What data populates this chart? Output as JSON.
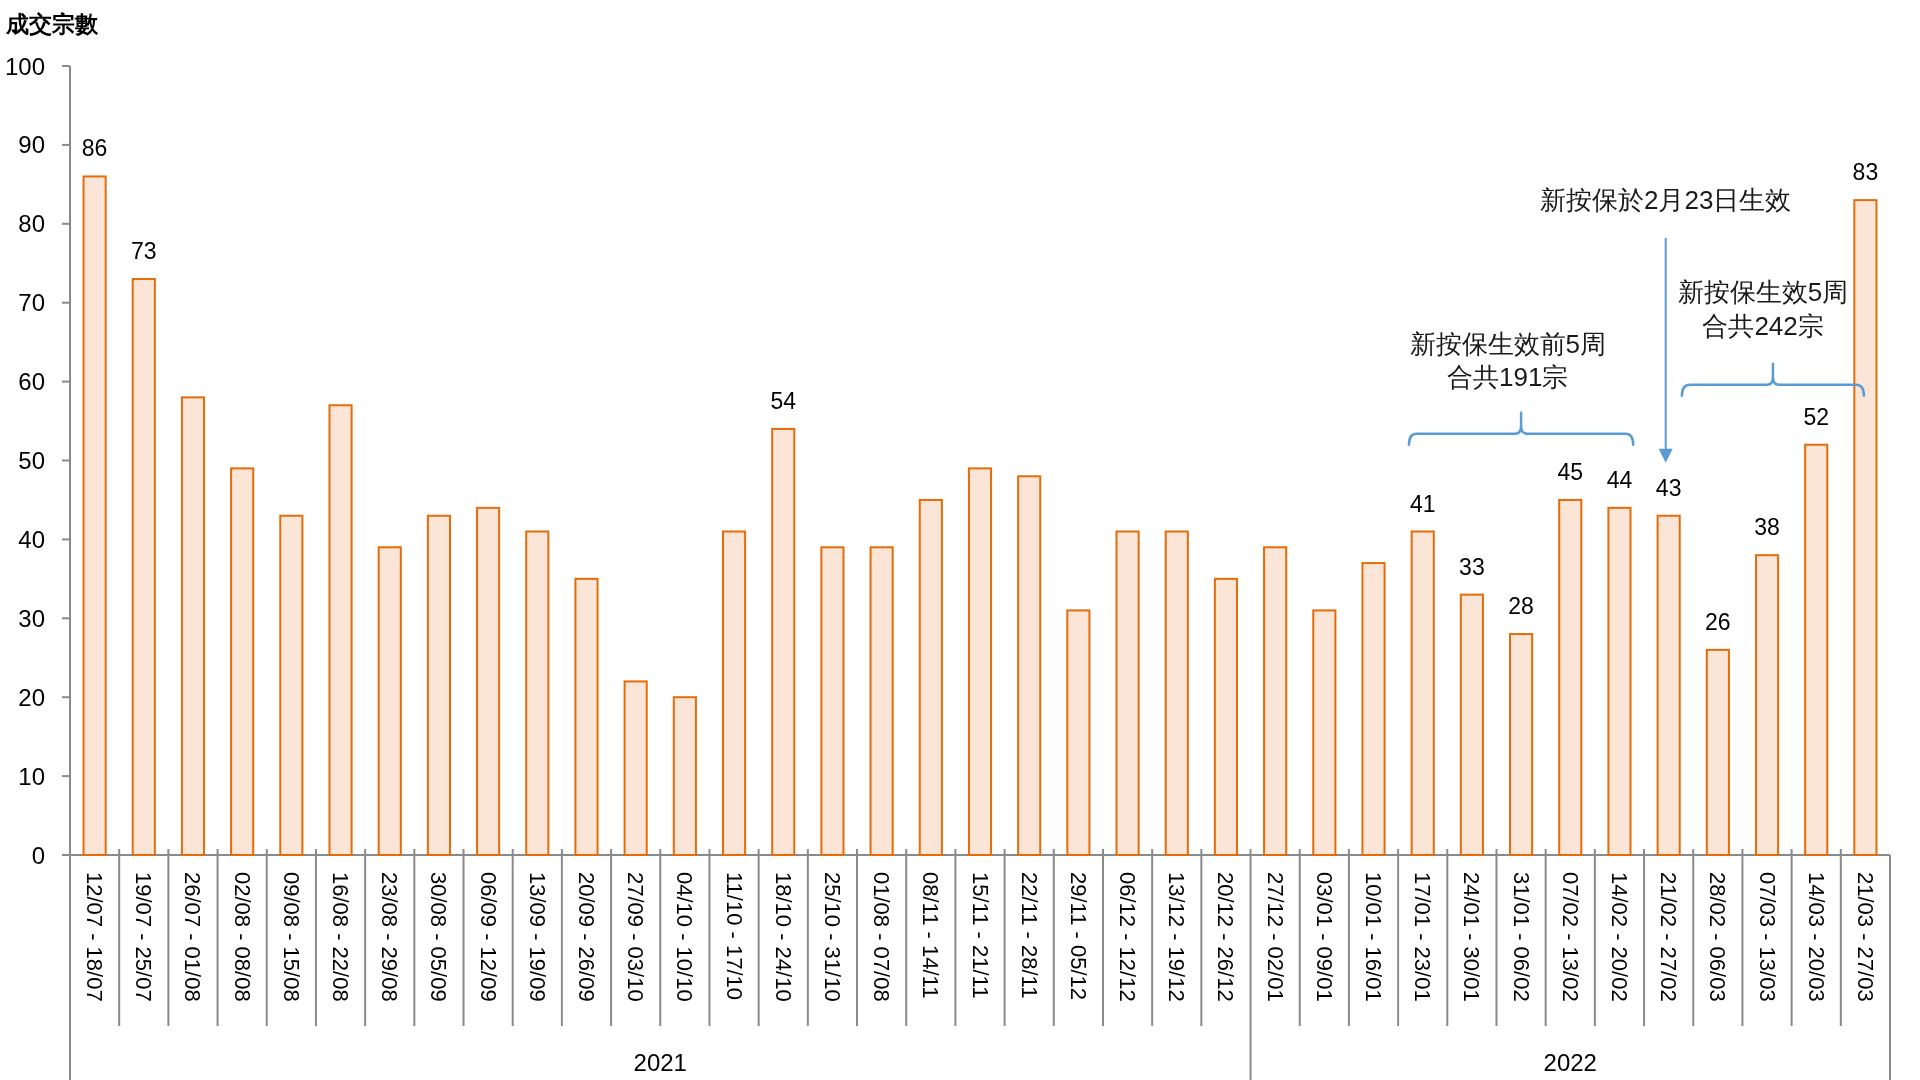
{
  "chart_data": {
    "type": "bar",
    "ylabel": "成交宗數",
    "categories": [
      "12/07 - 18/07",
      "19/07 - 25/07",
      "26/07 - 01/08",
      "02/08 - 08/08",
      "09/08 - 15/08",
      "16/08 - 22/08",
      "23/08 - 29/08",
      "30/08 - 05/09",
      "06/09 - 12/09",
      "13/09 - 19/09",
      "20/09 - 26/09",
      "27/09 - 03/10",
      "04/10 - 10/10",
      "11/10 - 17/10",
      "18/10 - 24/10",
      "25/10 - 31/10",
      "01/08 - 07/08",
      "08/11 - 14/11",
      "15/11 - 21/11",
      "22/11 - 28/11",
      "29/11 - 05/12",
      "06/12 - 12/12",
      "13/12 - 19/12",
      "20/12 - 26/12",
      "27/12 - 02/01",
      "03/01 - 09/01",
      "10/01 - 16/01",
      "17/01 - 23/01",
      "24/01 - 30/01",
      "31/01 - 06/02",
      "07/02 - 13/02",
      "14/02 - 20/02",
      "21/02 - 27/02",
      "28/02 - 06/03",
      "07/03 - 13/03",
      "14/03 - 20/03",
      "21/03 - 27/03"
    ],
    "values": [
      86,
      73,
      58,
      49,
      43,
      57,
      39,
      43,
      44,
      41,
      35,
      22,
      20,
      41,
      54,
      39,
      39,
      45,
      49,
      48,
      31,
      41,
      41,
      35,
      39,
      31,
      37,
      41,
      33,
      28,
      45,
      44,
      43,
      26,
      38,
      52,
      83
    ],
    "value_labels": [
      "86",
      "73",
      null,
      null,
      null,
      null,
      null,
      null,
      null,
      null,
      null,
      null,
      null,
      null,
      "54",
      null,
      null,
      null,
      null,
      null,
      null,
      null,
      null,
      null,
      null,
      null,
      null,
      "41",
      "33",
      "28",
      "45",
      "44",
      "43",
      "26",
      "38",
      "52",
      "83"
    ],
    "color": "#fbe5d6",
    "ylim": [
      0,
      100
    ],
    "yticks": [
      0,
      10,
      20,
      30,
      40,
      50,
      60,
      70,
      80,
      90,
      100
    ],
    "annotations": [
      "新按保於2月23日生效",
      "新按保生效前5周",
      "合共191宗",
      "新按保生效5周",
      "合共242宗",
      "2021",
      "2022"
    ]
  }
}
